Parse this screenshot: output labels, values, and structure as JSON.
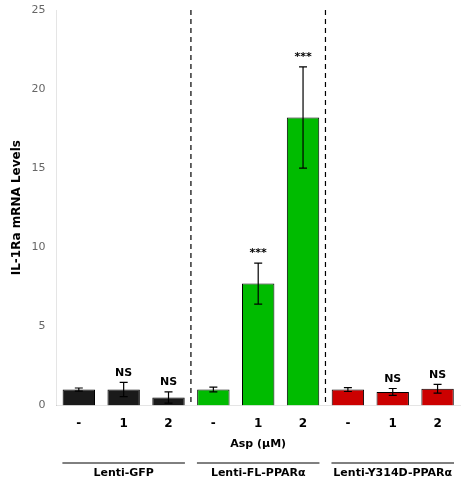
{
  "chart_data": {
    "type": "bar",
    "ylabel": "IL-1Ra mRNA Levels",
    "xlabel": "Asp (μM)",
    "categories": [
      "-",
      "1",
      "2",
      "-",
      "1",
      "2",
      "-",
      "1",
      "2"
    ],
    "values": [
      1.0,
      1.0,
      0.5,
      1.0,
      7.7,
      18.2,
      1.0,
      0.85,
      1.05
    ],
    "errors": [
      0.1,
      0.45,
      0.35,
      0.15,
      1.3,
      3.2,
      0.12,
      0.22,
      0.28
    ],
    "colors": [
      "#1a1a1a",
      "#1a1a1a",
      "#1a1a1a",
      "#00bb00",
      "#00bb00",
      "#00bb00",
      "#cc0000",
      "#cc0000",
      "#cc0000"
    ],
    "annotations": [
      null,
      "NS",
      "NS",
      null,
      "***",
      "***",
      null,
      "NS",
      "NS"
    ],
    "groups": [
      {
        "label": "Lenti-GFP",
        "count": 3
      },
      {
        "label": "Lenti-FL-PPARα",
        "count": 3
      },
      {
        "label": "Lenti-Y314D-PPARα",
        "count": 3
      }
    ],
    "ylim": [
      0,
      25
    ],
    "yticks": [
      0,
      5,
      10,
      15,
      20,
      25
    ],
    "grid": false
  }
}
